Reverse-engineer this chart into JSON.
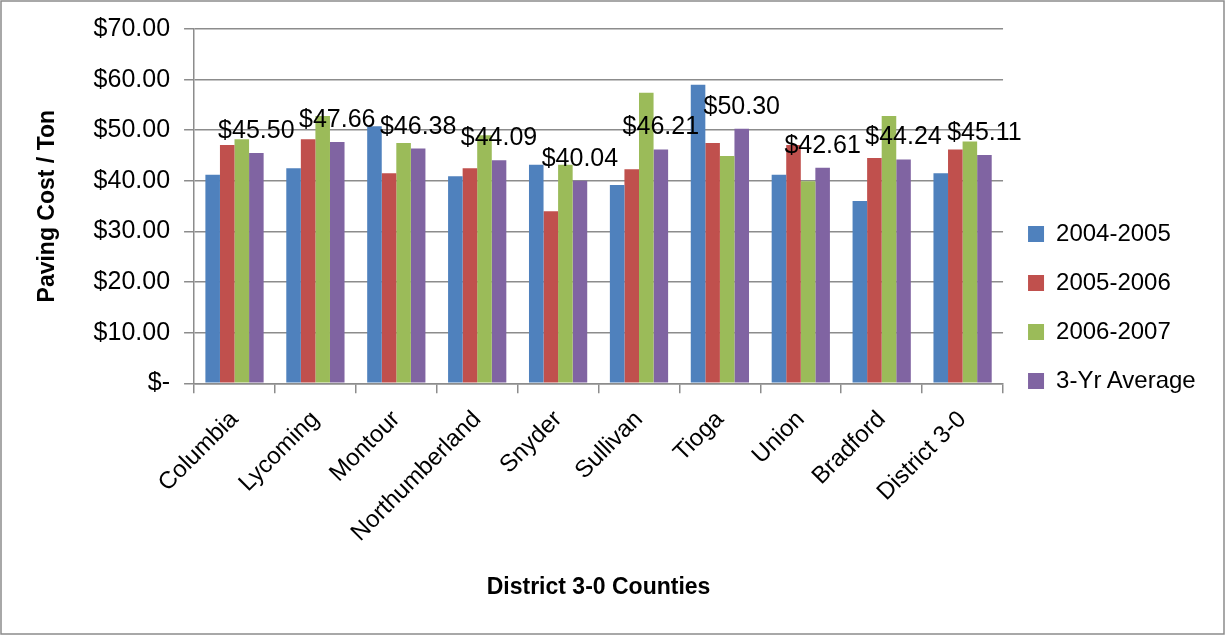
{
  "chart_data": {
    "type": "bar",
    "xlabel": "District 3-0 Counties",
    "ylabel": "Paving Cost / Ton",
    "categories": [
      "Columbia",
      "Lycoming",
      "Montour",
      "Northumberland",
      "Snyder",
      "Sullivan",
      "Tioga",
      "Union",
      "Bradford",
      "District 3-0"
    ],
    "series": [
      {
        "name": "2004-2005",
        "color": "#4f81bd",
        "values": [
          41.2,
          42.5,
          50.8,
          40.9,
          43.2,
          39.2,
          59.0,
          41.2,
          36.0,
          41.5
        ]
      },
      {
        "name": "2005-2006",
        "color": "#c0504d",
        "values": [
          47.1,
          48.2,
          41.5,
          42.5,
          34.0,
          42.3,
          47.5,
          47.1,
          44.5,
          46.2
        ]
      },
      {
        "name": "2006-2007",
        "color": "#9bbb59",
        "values": [
          48.2,
          52.8,
          47.5,
          49.0,
          43.2,
          57.4,
          44.9,
          39.9,
          52.8,
          47.8
        ]
      },
      {
        "name": "3-Yr Average",
        "color": "#8064a2",
        "values": [
          45.5,
          47.66,
          46.38,
          44.09,
          40.04,
          46.21,
          50.3,
          42.61,
          44.24,
          45.11
        ],
        "value_labels": [
          "$45.50",
          "$47.66",
          "$46.38",
          "$44.09",
          "$40.04",
          "$46.21",
          "$50.30",
          "$42.61",
          "$44.24",
          "$45.11"
        ]
      }
    ],
    "ylim": [
      0,
      70
    ],
    "yticks": [
      {
        "value": 0,
        "label": "$-"
      },
      {
        "value": 10,
        "label": "$10.00"
      },
      {
        "value": 20,
        "label": "$20.00"
      },
      {
        "value": 30,
        "label": "$30.00"
      },
      {
        "value": 40,
        "label": "$40.00"
      },
      {
        "value": 50,
        "label": "$50.00"
      },
      {
        "value": 60,
        "label": "$60.00"
      },
      {
        "value": 70,
        "label": "$70.00"
      }
    ],
    "grid": "y",
    "legend": "right"
  }
}
